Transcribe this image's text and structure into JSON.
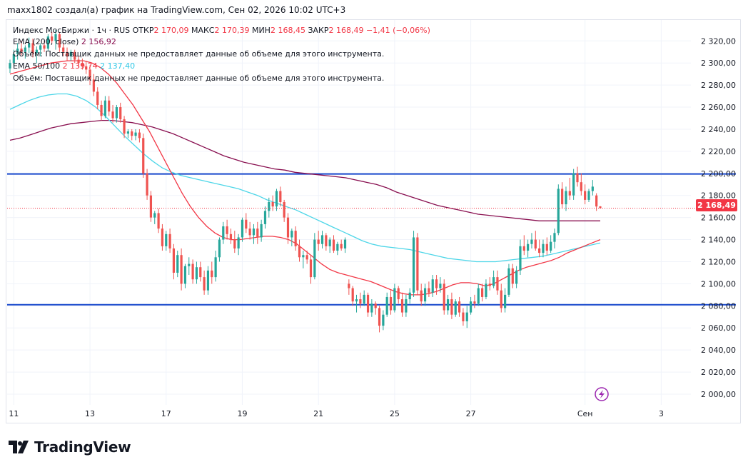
{
  "header": {
    "text": "maxx1802 создал(а) график на TradingView.com, Сен 02, 2026 10:02 UTC+3"
  },
  "legend": {
    "symbol": "Индекс МосБиржи · 1ч · RUS",
    "o_label": "ОТКР",
    "o_value": "2 170,09",
    "h_label": "МАКС",
    "h_value": "2 170,39",
    "l_label": "МИН",
    "l_value": "2 168,45",
    "c_label": "ЗАКР",
    "c_value": "2 168,49",
    "change": "−1,41 (−0,06%)",
    "ema200_label": "EMA (200, close)",
    "ema200_value": "2 156,92",
    "volume_note": "Объём: Поставщик данных не предоставляет данные об объеме для этого инструмента.",
    "ema50100_label": "EMA 50/100",
    "ema50_value": "2 139,74",
    "ema100_value": "2 137,40",
    "volume_note2": "Объём: Поставщик данных не предоставляет данные об объеме для этого инструмента."
  },
  "price_tag": "2 168,49",
  "footer": {
    "brand": "TradingView"
  },
  "colors": {
    "up": "#26a69a",
    "down": "#ef5350",
    "ema50": "#f23645",
    "ema100": "#4dd6e8",
    "ema200": "#880e4f",
    "hline": "#1848cc",
    "grid": "#f0f3fa"
  },
  "chart_data": {
    "type": "candlestick",
    "title": "Индекс МосБиржи · 1ч",
    "y_ticks": [
      "2 000,00",
      "2 020,00",
      "2 040,00",
      "2 060,00",
      "2 080,00",
      "2 100,00",
      "2 120,00",
      "2 140,00",
      "2 160,00",
      "2 180,00",
      "2 200,00",
      "2 220,00",
      "2 240,00",
      "2 260,00",
      "2 280,00",
      "2 300,00",
      "2 320,00"
    ],
    "ylim": [
      1994,
      2332
    ],
    "x_ticks": [
      "11",
      "13",
      "17",
      "19",
      "21",
      "25",
      "27",
      "Сен",
      "3"
    ],
    "x_tick_index": [
      1,
      21,
      41,
      61,
      81,
      101,
      121,
      151,
      171
    ],
    "horizontal_lines": [
      2199.5,
      2081
    ],
    "last_price": 2168.49,
    "candles": [
      [
        2295,
        2303,
        2291,
        2300
      ],
      [
        2300,
        2312,
        2297,
        2308
      ],
      [
        2308,
        2318,
        2303,
        2313
      ],
      [
        2313,
        2320,
        2307,
        2310
      ],
      [
        2310,
        2316,
        2304,
        2314
      ],
      [
        2314,
        2323,
        2309,
        2318
      ],
      [
        2318,
        2322,
        2305,
        2309
      ],
      [
        2309,
        2315,
        2300,
        2312
      ],
      [
        2312,
        2318,
        2306,
        2316
      ],
      [
        2316,
        2320,
        2310,
        2313
      ],
      [
        2313,
        2326,
        2311,
        2324
      ],
      [
        2324,
        2328,
        2318,
        2320
      ],
      [
        2320,
        2330,
        2312,
        2326
      ],
      [
        2326,
        2328,
        2310,
        2314
      ],
      [
        2314,
        2318,
        2306,
        2310
      ],
      [
        2310,
        2314,
        2302,
        2306
      ],
      [
        2306,
        2312,
        2302,
        2310
      ],
      [
        2310,
        2312,
        2300,
        2303
      ],
      [
        2303,
        2306,
        2296,
        2300
      ],
      [
        2300,
        2304,
        2294,
        2297
      ],
      [
        2297,
        2302,
        2290,
        2294
      ],
      [
        2294,
        2298,
        2280,
        2285
      ],
      [
        2285,
        2290,
        2270,
        2274
      ],
      [
        2274,
        2278,
        2258,
        2262
      ],
      [
        2262,
        2266,
        2248,
        2252
      ],
      [
        2252,
        2270,
        2250,
        2266
      ],
      [
        2266,
        2270,
        2252,
        2256
      ],
      [
        2256,
        2262,
        2246,
        2250
      ],
      [
        2250,
        2262,
        2246,
        2260
      ],
      [
        2260,
        2264,
        2246,
        2249
      ],
      [
        2249,
        2252,
        2232,
        2236
      ],
      [
        2236,
        2240,
        2232,
        2238
      ],
      [
        2238,
        2240,
        2230,
        2234
      ],
      [
        2234,
        2240,
        2230,
        2237
      ],
      [
        2237,
        2240,
        2228,
        2232
      ],
      [
        2232,
        2236,
        2196,
        2200
      ],
      [
        2200,
        2204,
        2176,
        2180
      ],
      [
        2180,
        2184,
        2156,
        2160
      ],
      [
        2160,
        2166,
        2154,
        2164
      ],
      [
        2164,
        2168,
        2146,
        2150
      ],
      [
        2150,
        2154,
        2130,
        2134
      ],
      [
        2134,
        2148,
        2130,
        2145
      ],
      [
        2145,
        2150,
        2128,
        2132
      ],
      [
        2132,
        2136,
        2104,
        2110
      ],
      [
        2110,
        2130,
        2106,
        2126
      ],
      [
        2126,
        2132,
        2094,
        2100
      ],
      [
        2100,
        2118,
        2096,
        2116
      ],
      [
        2116,
        2124,
        2108,
        2118
      ],
      [
        2118,
        2122,
        2100,
        2104
      ],
      [
        2104,
        2120,
        2100,
        2115
      ],
      [
        2115,
        2120,
        2102,
        2106
      ],
      [
        2106,
        2112,
        2090,
        2094
      ],
      [
        2094,
        2116,
        2090,
        2112
      ],
      [
        2112,
        2120,
        2100,
        2106
      ],
      [
        2106,
        2130,
        2102,
        2124
      ],
      [
        2124,
        2142,
        2120,
        2140
      ],
      [
        2140,
        2156,
        2136,
        2152
      ],
      [
        2152,
        2158,
        2140,
        2145
      ],
      [
        2145,
        2150,
        2136,
        2140
      ],
      [
        2140,
        2148,
        2128,
        2132
      ],
      [
        2132,
        2145,
        2126,
        2142
      ],
      [
        2142,
        2160,
        2138,
        2158
      ],
      [
        2158,
        2164,
        2146,
        2150
      ],
      [
        2150,
        2156,
        2140,
        2144
      ],
      [
        2144,
        2154,
        2136,
        2150
      ],
      [
        2150,
        2156,
        2136,
        2142
      ],
      [
        2142,
        2158,
        2138,
        2154
      ],
      [
        2154,
        2170,
        2150,
        2166
      ],
      [
        2166,
        2178,
        2160,
        2174
      ],
      [
        2174,
        2180,
        2166,
        2170
      ],
      [
        2170,
        2186,
        2166,
        2184
      ],
      [
        2184,
        2188,
        2170,
        2174
      ],
      [
        2174,
        2176,
        2156,
        2160
      ],
      [
        2160,
        2164,
        2136,
        2142
      ],
      [
        2142,
        2150,
        2134,
        2148
      ],
      [
        2148,
        2152,
        2130,
        2134
      ],
      [
        2134,
        2140,
        2120,
        2124
      ],
      [
        2124,
        2130,
        2114,
        2126
      ],
      [
        2126,
        2130,
        2118,
        2122
      ],
      [
        2122,
        2126,
        2100,
        2106
      ],
      [
        2106,
        2146,
        2104,
        2140
      ],
      [
        2140,
        2148,
        2130,
        2136
      ],
      [
        2136,
        2148,
        2132,
        2144
      ],
      [
        2144,
        2146,
        2130,
        2134
      ],
      [
        2134,
        2142,
        2128,
        2140
      ],
      [
        2140,
        2144,
        2128,
        2130
      ],
      [
        2130,
        2138,
        2126,
        2136
      ],
      [
        2136,
        2140,
        2130,
        2132
      ],
      [
        2132,
        2142,
        2128,
        2140
      ],
      [
        2100,
        2104,
        2090,
        2096
      ],
      [
        2096,
        2098,
        2080,
        2084
      ],
      [
        2084,
        2090,
        2074,
        2086
      ],
      [
        2086,
        2092,
        2078,
        2082
      ],
      [
        2082,
        2094,
        2080,
        2090
      ],
      [
        2090,
        2092,
        2070,
        2074
      ],
      [
        2074,
        2086,
        2070,
        2082
      ],
      [
        2082,
        2084,
        2072,
        2078
      ],
      [
        2078,
        2080,
        2056,
        2062
      ],
      [
        2062,
        2076,
        2058,
        2072
      ],
      [
        2072,
        2092,
        2070,
        2088
      ],
      [
        2088,
        2094,
        2072,
        2076
      ],
      [
        2076,
        2100,
        2074,
        2096
      ],
      [
        2096,
        2098,
        2082,
        2086
      ],
      [
        2086,
        2092,
        2070,
        2074
      ],
      [
        2074,
        2090,
        2070,
        2086
      ],
      [
        2086,
        2096,
        2082,
        2092
      ],
      [
        2092,
        2148,
        2088,
        2142
      ],
      [
        2142,
        2146,
        2090,
        2094
      ],
      [
        2094,
        2100,
        2080,
        2084
      ],
      [
        2084,
        2100,
        2080,
        2096
      ],
      [
        2096,
        2102,
        2088,
        2092
      ],
      [
        2092,
        2108,
        2088,
        2104
      ],
      [
        2104,
        2108,
        2090,
        2096
      ],
      [
        2096,
        2106,
        2092,
        2100
      ],
      [
        2100,
        2104,
        2072,
        2076
      ],
      [
        2076,
        2090,
        2072,
        2086
      ],
      [
        2086,
        2092,
        2068,
        2072
      ],
      [
        2072,
        2086,
        2070,
        2084
      ],
      [
        2084,
        2088,
        2070,
        2074
      ],
      [
        2074,
        2078,
        2062,
        2066
      ],
      [
        2066,
        2080,
        2060,
        2074
      ],
      [
        2074,
        2088,
        2072,
        2084
      ],
      [
        2084,
        2090,
        2078,
        2082
      ],
      [
        2082,
        2100,
        2080,
        2096
      ],
      [
        2096,
        2100,
        2084,
        2088
      ],
      [
        2088,
        2104,
        2086,
        2100
      ],
      [
        2100,
        2106,
        2094,
        2098
      ],
      [
        2098,
        2112,
        2096,
        2106
      ],
      [
        2106,
        2112,
        2090,
        2094
      ],
      [
        2094,
        2100,
        2074,
        2078
      ],
      [
        2078,
        2096,
        2074,
        2090
      ],
      [
        2090,
        2118,
        2088,
        2114
      ],
      [
        2114,
        2118,
        2096,
        2100
      ],
      [
        2100,
        2116,
        2096,
        2112
      ],
      [
        2112,
        2140,
        2108,
        2134
      ],
      [
        2134,
        2144,
        2126,
        2130
      ],
      [
        2130,
        2140,
        2124,
        2136
      ],
      [
        2136,
        2146,
        2132,
        2140
      ],
      [
        2140,
        2148,
        2130,
        2132
      ],
      [
        2132,
        2140,
        2124,
        2128
      ],
      [
        2128,
        2140,
        2124,
        2136
      ],
      [
        2136,
        2142,
        2126,
        2130
      ],
      [
        2130,
        2144,
        2128,
        2138
      ],
      [
        2138,
        2150,
        2132,
        2146
      ],
      [
        2146,
        2190,
        2144,
        2186
      ],
      [
        2186,
        2192,
        2168,
        2172
      ],
      [
        2172,
        2188,
        2166,
        2184
      ],
      [
        2184,
        2196,
        2176,
        2180
      ],
      [
        2180,
        2204,
        2176,
        2200
      ],
      [
        2200,
        2206,
        2188,
        2192
      ],
      [
        2192,
        2200,
        2180,
        2184
      ],
      [
        2184,
        2190,
        2172,
        2176
      ],
      [
        2176,
        2186,
        2174,
        2184
      ],
      [
        2184,
        2194,
        2180,
        2188
      ],
      [
        2180,
        2182,
        2166,
        2170
      ],
      [
        2170.09,
        2170.39,
        2168.45,
        2168.49
      ]
    ],
    "ema50": [
      2290,
      2292,
      2294,
      2296,
      2298,
      2300,
      2301,
      2302,
      2302,
      2302,
      2300,
      2296,
      2290,
      2282,
      2272,
      2262,
      2250,
      2238,
      2224,
      2210,
      2196,
      2182,
      2170,
      2160,
      2152,
      2146,
      2142,
      2140,
      2140,
      2141,
      2142,
      2143,
      2143,
      2142,
      2140,
      2136,
      2130,
      2124,
      2118,
      2113,
      2110,
      2108,
      2106,
      2104,
      2102,
      2099,
      2096,
      2093,
      2091,
      2090,
      2090,
      2091,
      2093,
      2096,
      2099,
      2101,
      2101,
      2100,
      2098,
      2100,
      2104,
      2108,
      2112,
      2115,
      2117,
      2119,
      2121,
      2124,
      2128,
      2131,
      2134,
      2137,
      2140
    ],
    "ema100": [
      2258,
      2262,
      2266,
      2269,
      2271,
      2272,
      2272,
      2270,
      2266,
      2260,
      2252,
      2243,
      2234,
      2226,
      2218,
      2211,
      2205,
      2201,
      2198,
      2196,
      2194,
      2192,
      2190,
      2188,
      2186,
      2183,
      2180,
      2176,
      2173,
      2170,
      2167,
      2163,
      2159,
      2155,
      2151,
      2147,
      2143,
      2139,
      2136,
      2134,
      2133,
      2132,
      2131,
      2129,
      2127,
      2125,
      2123,
      2122,
      2121,
      2120,
      2120,
      2120,
      2121,
      2122,
      2123,
      2124,
      2125,
      2127,
      2129,
      2131,
      2133,
      2135,
      2137
    ],
    "ema200": [
      2230,
      2232,
      2235,
      2238,
      2241,
      2243,
      2245,
      2246,
      2247,
      2248,
      2248,
      2247,
      2246,
      2244,
      2242,
      2239,
      2236,
      2232,
      2228,
      2224,
      2220,
      2216,
      2213,
      2210,
      2208,
      2206,
      2204,
      2203,
      2201,
      2200,
      2199,
      2198,
      2197,
      2196,
      2194,
      2192,
      2190,
      2187,
      2183,
      2180,
      2177,
      2174,
      2171,
      2169,
      2167,
      2165,
      2163,
      2162,
      2161,
      2160,
      2159,
      2158,
      2157,
      2157,
      2157,
      2157,
      2157,
      2157,
      2157
    ]
  }
}
